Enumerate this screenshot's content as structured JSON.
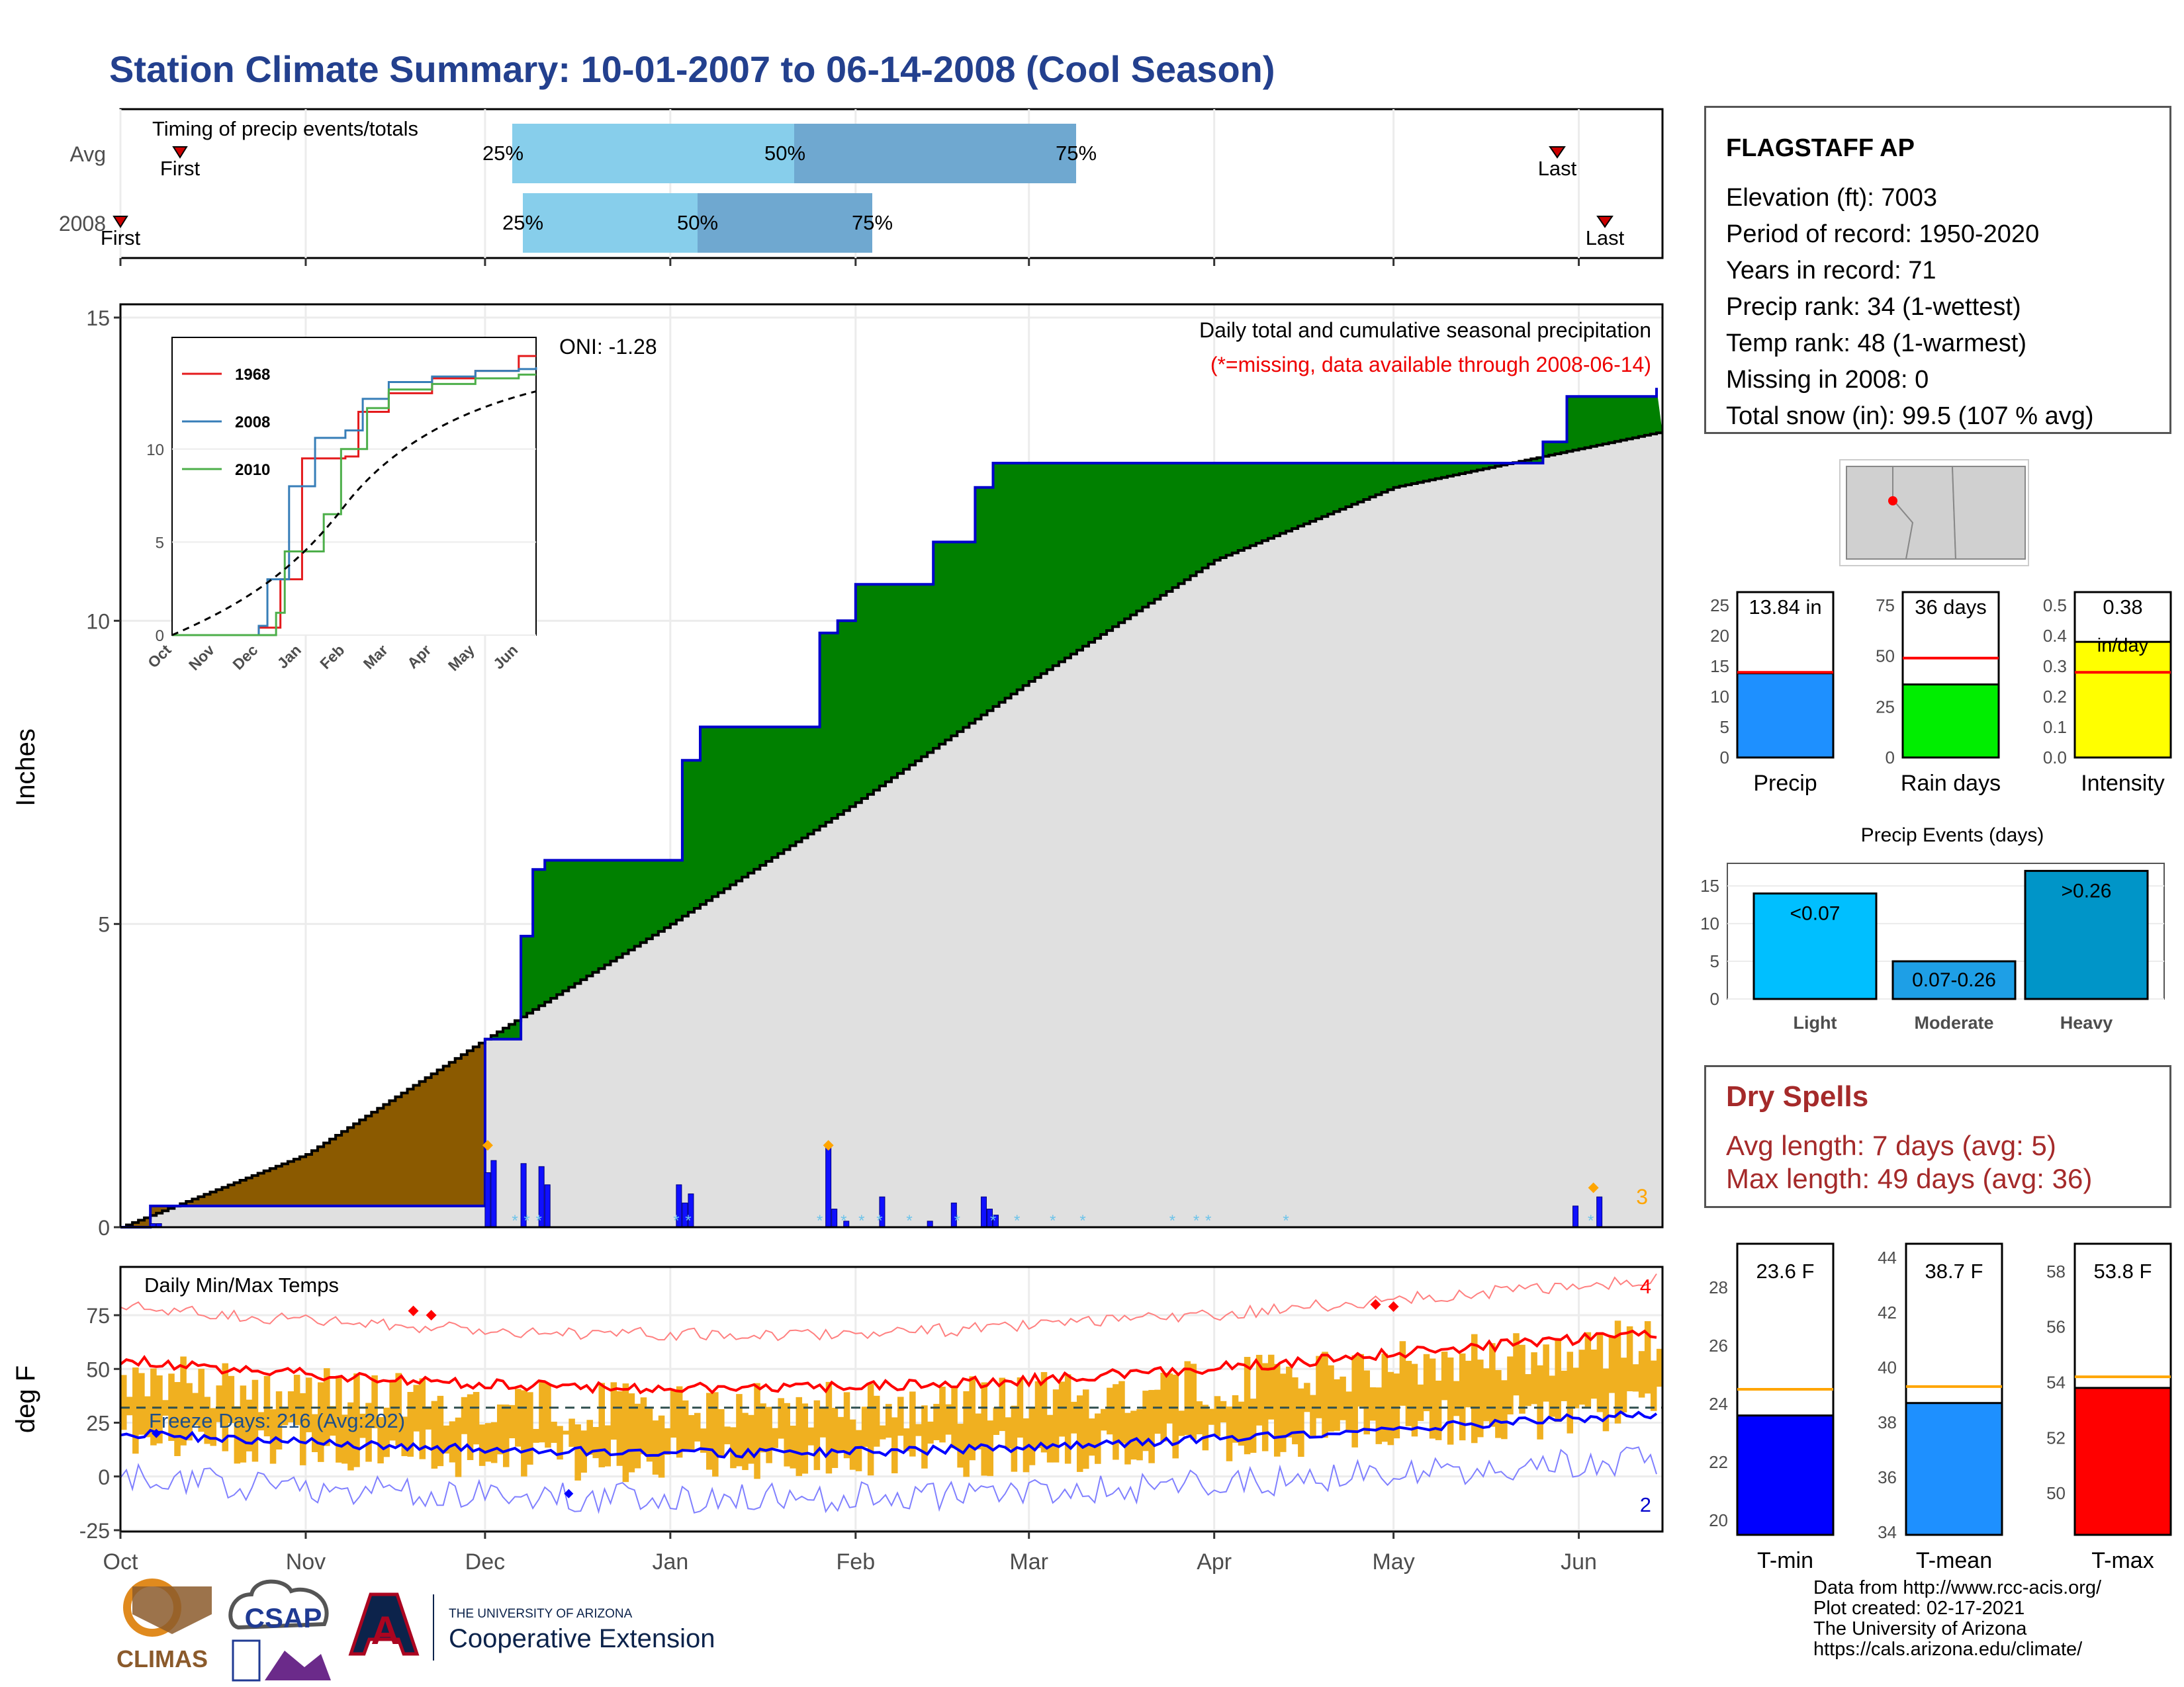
{
  "title": "Station Climate Summary: 10-01-2007 to 06-14-2008 (Cool Season)",
  "colors": {
    "title": "#23408e",
    "brown": "#8b5a00",
    "green": "#008000",
    "gray": "#e0e0e0",
    "blue_line": "#0000cc",
    "red": "#ff0000",
    "orange_bar": "#f0b020",
    "lightblue": "#87ceeb",
    "steelblue": "#6fa8d0"
  },
  "timing": {
    "title": "Timing of precip events/totals",
    "rows": [
      {
        "label": "Avg",
        "first_label": "First",
        "last_label": "Last",
        "p25": "25%",
        "p50": "50%",
        "p75": "75%"
      },
      {
        "label": "2008",
        "first_label": "First",
        "last_label": "Last",
        "p25": "25%",
        "p50": "50%",
        "p75": "75%"
      }
    ]
  },
  "main": {
    "ylabel": "Inches",
    "note1": "Daily total and cumulative seasonal precipitation",
    "note2": "(*=missing, data available through 2008-06-14)",
    "oni": "ONI: -1.28",
    "corner_count": "3",
    "yticks": [
      "0",
      "5",
      "10",
      "15"
    ]
  },
  "inset": {
    "series": [
      {
        "name": "1968",
        "color": "#e41a1c"
      },
      {
        "name": "2008",
        "color": "#377eb8"
      },
      {
        "name": "2010",
        "color": "#4daf4a"
      }
    ],
    "xticks": [
      "Oct",
      "Nov",
      "Dec",
      "Jan",
      "Feb",
      "Mar",
      "Apr",
      "May",
      "Jun"
    ],
    "yticks": [
      "0",
      "5",
      "10"
    ]
  },
  "temps": {
    "label": "Daily Min/Max Temps",
    "ylabel": "deg F",
    "freeze": "Freeze Days: 216 (Avg:202)",
    "max_count": "4",
    "min_count": "2",
    "yticks": [
      "-25",
      "0",
      "25",
      "50",
      "75"
    ]
  },
  "months": [
    "Oct",
    "Nov",
    "Dec",
    "Jan",
    "Feb",
    "Mar",
    "Apr",
    "May",
    "Jun"
  ],
  "station": {
    "name": "FLAGSTAFF AP",
    "lines": [
      "Elevation (ft): 7003",
      "Period of record: 1950-2020",
      "Years in record: 71",
      "Precip rank: 34 (1-wettest)",
      "Temp rank: 48 (1-warmest)",
      "Missing in 2008: 0",
      "Total snow (in): 99.5 (107 % avg)"
    ]
  },
  "mini_bars": [
    {
      "label": "Precip",
      "value_text": "13.84 in",
      "value": 13.84,
      "avg": 14.0,
      "ymax": 25,
      "yticks": [
        "0",
        "5",
        "10",
        "15",
        "20",
        "25"
      ],
      "color": "#1e90ff"
    },
    {
      "label": "Rain days",
      "value_text": "36 days",
      "value": 36,
      "avg": 49,
      "ymax": 75,
      "yticks": [
        "0",
        "25",
        "50",
        "75"
      ],
      "color": "#00ee00"
    },
    {
      "label": "Intensity",
      "value_text": "0.38",
      "value_text2": "in/day",
      "value": 0.38,
      "avg": 0.28,
      "ymax": 0.5,
      "yticks": [
        "0.0",
        "0.1",
        "0.2",
        "0.3",
        "0.4",
        "0.5"
      ],
      "color": "#ffff00"
    }
  ],
  "events": {
    "title": "Precip Events (days)",
    "bars": [
      {
        "label": "Light",
        "text": "<0.07",
        "value": 14,
        "color": "#00bfff"
      },
      {
        "label": "Moderate",
        "text": "0.07-0.26",
        "value": 5,
        "color": "#1e9fe6"
      },
      {
        "label": "Heavy",
        "text": ">0.26",
        "value": 17,
        "color": "#0095c8"
      }
    ],
    "yticks": [
      "0",
      "5",
      "10",
      "15"
    ]
  },
  "dry": {
    "title": "Dry Spells",
    "avg": "Avg length: 7 days (avg: 5)",
    "max": "Max length: 49 days (avg: 36)"
  },
  "temp_bars": [
    {
      "label": "T-min",
      "value_text": "23.6 F",
      "value": 23.6,
      "avg": 24.5,
      "ymin": 19.5,
      "ymax": 29.5,
      "yticks": [
        "20",
        "22",
        "24",
        "26",
        "28"
      ],
      "color": "#0000ff"
    },
    {
      "label": "T-mean",
      "value_text": "38.7 F",
      "value": 38.7,
      "avg": 39.3,
      "ymin": 33.9,
      "ymax": 44.5,
      "yticks": [
        "34",
        "36",
        "38",
        "40",
        "42",
        "44"
      ],
      "color": "#1e90ff"
    },
    {
      "label": "T-max",
      "value_text": "53.8 F",
      "value": 53.8,
      "avg": 54.2,
      "ymin": 48.5,
      "ymax": 59.0,
      "yticks": [
        "50",
        "52",
        "54",
        "56",
        "58"
      ],
      "color": "#ff0000"
    }
  ],
  "credits": [
    "Data from http://www.rcc-acis.org/",
    "Plot created: 02-17-2021",
    "The University of Arizona",
    "https://cals.arizona.edu/climate/"
  ],
  "logos": {
    "climas": "CLIMAS",
    "csap": "CSAP",
    "ua_top": "THE UNIVERSITY OF ARIZONA",
    "ua_bottom": "Cooperative Extension",
    "ua_letter": "A"
  },
  "chart_data": {
    "type": "area",
    "title": "Daily total and cumulative seasonal precipitation",
    "ylabel": "Inches",
    "ylim": [
      0,
      15
    ],
    "x": [
      "Oct",
      "Nov",
      "Dec",
      "Jan",
      "Feb",
      "Mar",
      "Apr",
      "May",
      "Jun"
    ],
    "series": [
      {
        "name": "2008",
        "points": [
          [
            "10-01",
            0
          ],
          [
            "10-06",
            0.35
          ],
          [
            "11-30",
            0.35
          ],
          [
            "12-01",
            3.1
          ],
          [
            "12-07",
            4.8
          ],
          [
            "12-09",
            5.9
          ],
          [
            "12-11",
            6.05
          ],
          [
            "01-01",
            6.05
          ],
          [
            "01-03",
            7.7
          ],
          [
            "01-06",
            8.25
          ],
          [
            "01-25",
            8.25
          ],
          [
            "01-26",
            9.8
          ],
          [
            "01-29",
            10.0
          ],
          [
            "02-01",
            10.6
          ],
          [
            "02-13",
            10.6
          ],
          [
            "02-14",
            11.3
          ],
          [
            "02-21",
            12.2
          ],
          [
            "02-24",
            12.6
          ],
          [
            "05-24",
            12.6
          ],
          [
            "05-26",
            12.95
          ],
          [
            "05-30",
            13.7
          ],
          [
            "06-14",
            13.84
          ]
        ]
      },
      {
        "name": "Avg",
        "points": [
          [
            "10-01",
            0
          ],
          [
            "11-01",
            1.2
          ],
          [
            "12-01",
            3.1
          ],
          [
            "01-01",
            5.0
          ],
          [
            "02-01",
            7.0
          ],
          [
            "03-01",
            9.0
          ],
          [
            "04-01",
            11.0
          ],
          [
            "05-01",
            12.2
          ],
          [
            "06-14",
            13.1
          ]
        ]
      }
    ]
  }
}
